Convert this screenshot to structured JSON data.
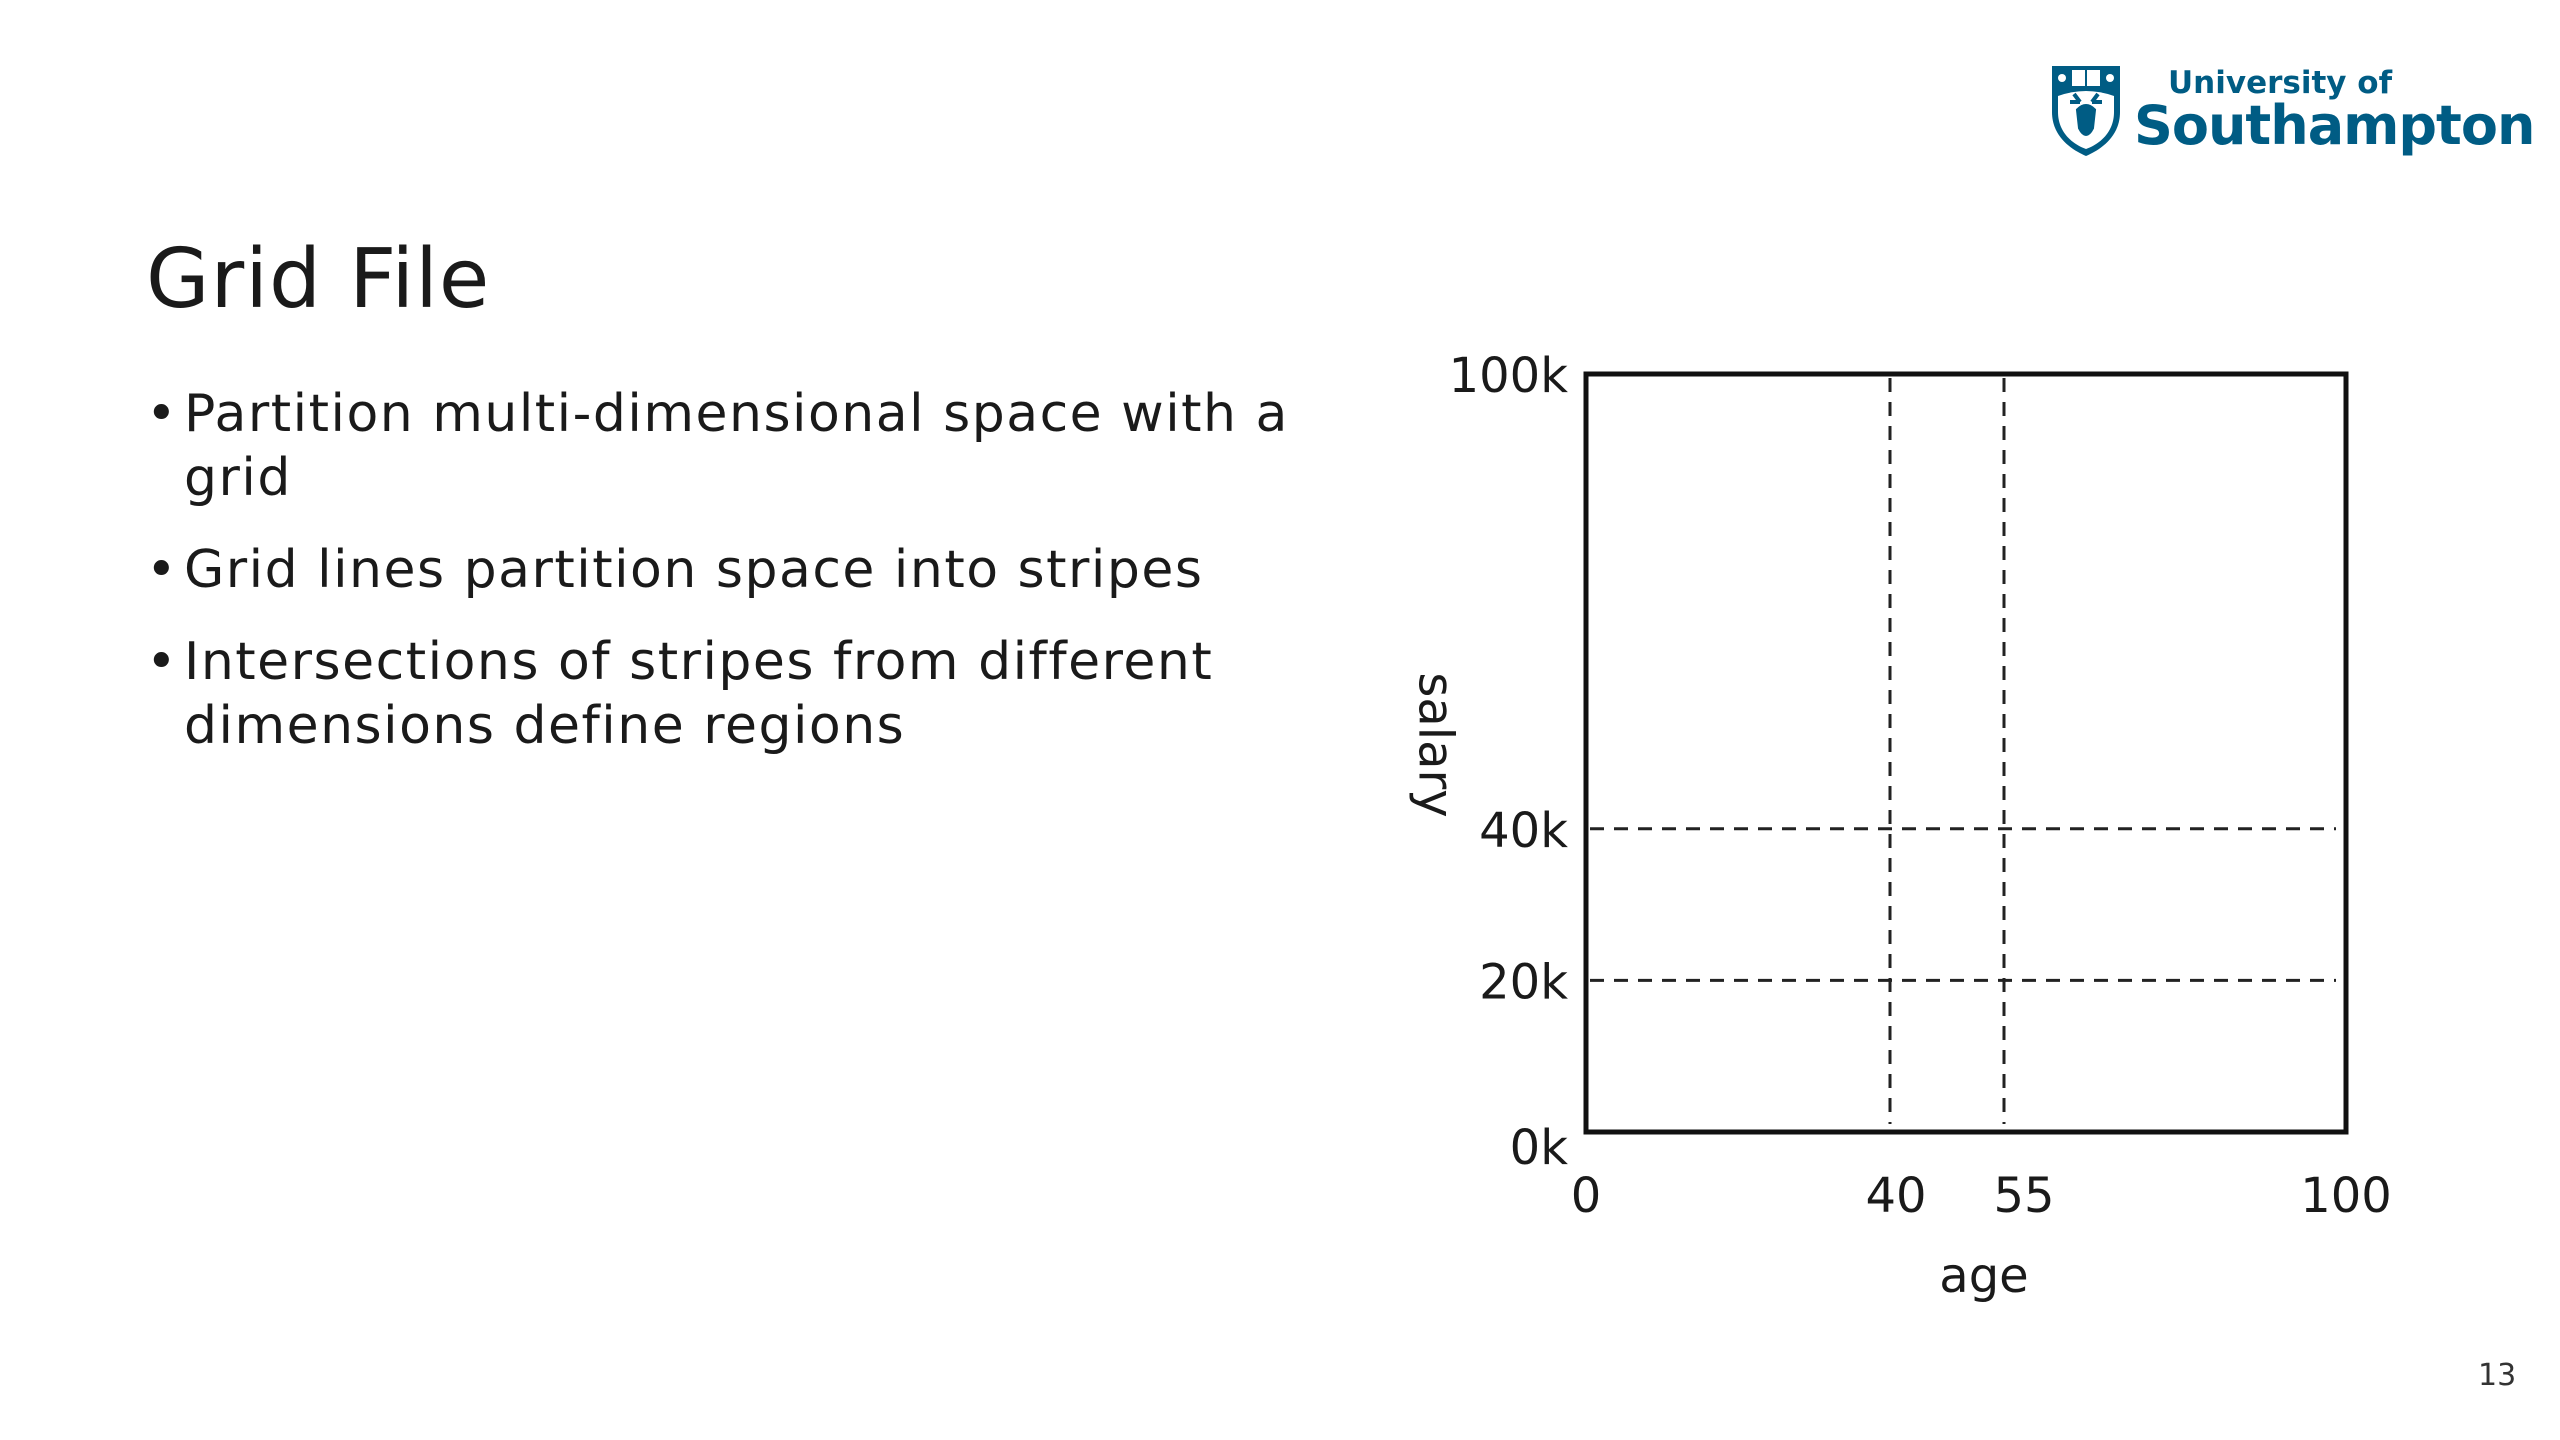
{
  "slide": {
    "title": "Grid File",
    "bullets": [
      "Partition multi-dimensional space with a grid",
      "Grid lines partition space into stripes",
      "Intersections of stripes from different dimensions define regions"
    ],
    "page_number": "13",
    "bullet_symbol": "•"
  },
  "logo": {
    "line1": "University of",
    "line2": "Southampton",
    "color": "#005c84",
    "icon": "shield-stag-crest-icon"
  },
  "chart_data": {
    "type": "grid-partition",
    "xlabel": "age",
    "ylabel": "salary",
    "xlim": [
      0,
      100
    ],
    "ylim": [
      0,
      100
    ],
    "x_ticks": [
      {
        "value": 0,
        "label": "0"
      },
      {
        "value": 40,
        "label": "40"
      },
      {
        "value": 55,
        "label": "55"
      },
      {
        "value": 100,
        "label": "100"
      }
    ],
    "y_ticks": [
      {
        "value": 0,
        "label": "0k"
      },
      {
        "value": 20,
        "label": "20k"
      },
      {
        "value": 40,
        "label": "40k"
      },
      {
        "value": 100,
        "label": "100k"
      }
    ],
    "vertical_grid_lines": [
      40,
      55
    ],
    "horizontal_grid_lines": [
      20,
      40
    ],
    "grid_line_style": "dashed"
  }
}
